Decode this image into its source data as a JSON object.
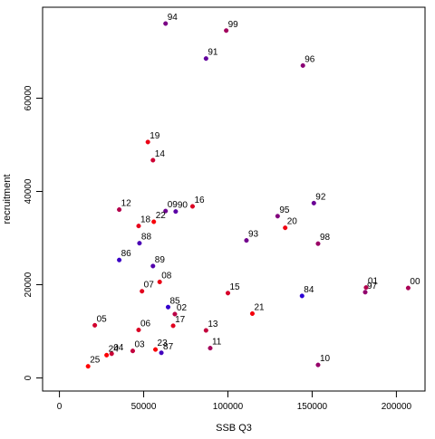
{
  "chart_data": {
    "type": "scatter",
    "xlabel": "SSB Q3",
    "ylabel": "recruitment",
    "xlim": [
      -10000,
      217000
    ],
    "ylim": [
      -2800,
      79500
    ],
    "x_ticks": [
      0,
      50000,
      100000,
      150000,
      200000
    ],
    "x_tick_labels": [
      "0",
      "50000",
      "100000",
      "150000",
      "200000"
    ],
    "y_ticks": [
      0,
      20000,
      40000,
      60000
    ],
    "y_tick_labels": [
      "0",
      "20000",
      "40000",
      "60000"
    ],
    "grid": false,
    "legend": "none",
    "point_style": "filled circle with a gradient from blue (earliest year) to red (latest year)",
    "points": [
      {
        "label": "84",
        "x": 144000,
        "y": 17600,
        "color": "#2a00d5"
      },
      {
        "label": "85",
        "x": 64500,
        "y": 15200,
        "color": "#3300cc"
      },
      {
        "label": "86",
        "x": 35500,
        "y": 25300,
        "color": "#3a00c5"
      },
      {
        "label": "87",
        "x": 60500,
        "y": 5400,
        "color": "#4200bd"
      },
      {
        "label": "88",
        "x": 47500,
        "y": 28900,
        "color": "#4a00b5"
      },
      {
        "label": "89",
        "x": 55500,
        "y": 24000,
        "color": "#5200ad"
      },
      {
        "label": "90",
        "x": 69000,
        "y": 35700,
        "color": "#5a00a5"
      },
      {
        "label": "91",
        "x": 87000,
        "y": 68500,
        "color": "#62009d"
      },
      {
        "label": "92",
        "x": 151000,
        "y": 37500,
        "color": "#6a0095"
      },
      {
        "label": "93",
        "x": 111000,
        "y": 29500,
        "color": "#72008d"
      },
      {
        "label": "94",
        "x": 63000,
        "y": 76000,
        "color": "#7a0085"
      },
      {
        "label": "95",
        "x": 129500,
        "y": 34700,
        "color": "#82007d"
      },
      {
        "label": "96",
        "x": 144500,
        "y": 67000,
        "color": "#8a0075"
      },
      {
        "label": "97",
        "x": 181500,
        "y": 18400,
        "color": "#92006d"
      },
      {
        "label": "98",
        "x": 153500,
        "y": 28800,
        "color": "#9a0065"
      },
      {
        "label": "99",
        "x": 99000,
        "y": 74500,
        "color": "#a2005d"
      },
      {
        "label": "00",
        "x": 207000,
        "y": 19300,
        "color": "#aa0055"
      },
      {
        "label": "01",
        "x": 182000,
        "y": 19400,
        "color": "#b2004d"
      },
      {
        "label": "02",
        "x": 68500,
        "y": 13700,
        "color": "#ba0045"
      },
      {
        "label": "03",
        "x": 43500,
        "y": 5800,
        "color": "#c2003d"
      },
      {
        "label": "04",
        "x": 31000,
        "y": 5200,
        "color": "#ca0035"
      },
      {
        "label": "05",
        "x": 21000,
        "y": 11300,
        "color": "#d2002d"
      },
      {
        "label": "06",
        "x": 47000,
        "y": 10300,
        "color": "#da0025"
      },
      {
        "label": "07",
        "x": 49000,
        "y": 18600,
        "color": "#e2001d"
      },
      {
        "label": "08",
        "x": 59500,
        "y": 20600,
        "color": "#ea0015"
      },
      {
        "label": "09",
        "x": 63000,
        "y": 35800,
        "color": "#6e0091"
      },
      {
        "label": "10",
        "x": 153500,
        "y": 2800,
        "color": "#96006a"
      },
      {
        "label": "11",
        "x": 89500,
        "y": 6400,
        "color": "#a5005a"
      },
      {
        "label": "12",
        "x": 35500,
        "y": 36100,
        "color": "#b4004b"
      },
      {
        "label": "13",
        "x": 87000,
        "y": 10200,
        "color": "#c3003c"
      },
      {
        "label": "14",
        "x": 55500,
        "y": 46700,
        "color": "#cd0032"
      },
      {
        "label": "15",
        "x": 100000,
        "y": 18200,
        "color": "#d7002a"
      },
      {
        "label": "16",
        "x": 79000,
        "y": 36800,
        "color": "#dc0023"
      },
      {
        "label": "17",
        "x": 67500,
        "y": 11200,
        "color": "#e1001e"
      },
      {
        "label": "18",
        "x": 47000,
        "y": 32600,
        "color": "#e6001a"
      },
      {
        "label": "19",
        "x": 52500,
        "y": 50600,
        "color": "#eb0014"
      },
      {
        "label": "20",
        "x": 134000,
        "y": 32200,
        "color": "#f00010"
      },
      {
        "label": "21",
        "x": 114500,
        "y": 13800,
        "color": "#f4000b"
      },
      {
        "label": "22",
        "x": 56000,
        "y": 33500,
        "color": "#f70008"
      },
      {
        "label": "23",
        "x": 57000,
        "y": 6100,
        "color": "#fa0005"
      },
      {
        "label": "24",
        "x": 28000,
        "y": 4900,
        "color": "#fc0003"
      },
      {
        "label": "25",
        "x": 17000,
        "y": 2500,
        "color": "#ff0000"
      }
    ]
  }
}
